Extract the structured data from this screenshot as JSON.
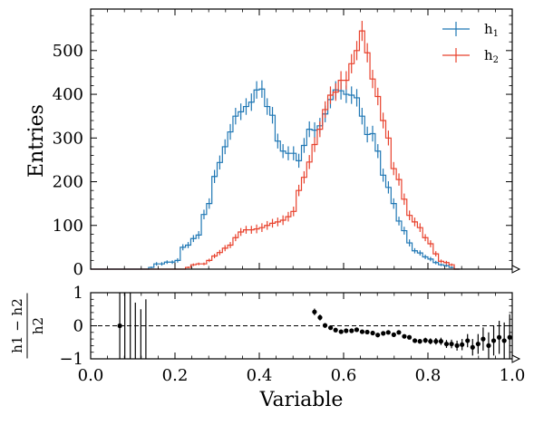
{
  "chart_data": [
    {
      "type": "histogram",
      "panel": "main",
      "xlim": [
        0.0,
        1.0
      ],
      "ylim": [
        0,
        595
      ],
      "ylabel": "Entries",
      "xlabel": "",
      "grid": false,
      "legend_position": "top-right",
      "bin_width": 0.0125,
      "bin_edges_start": 0.0,
      "yticks": [
        "0",
        "100",
        "200",
        "300",
        "400",
        "500"
      ],
      "ytick_values": [
        0,
        100,
        200,
        300,
        400,
        500
      ],
      "series": [
        {
          "name": "h1",
          "color": "#1f77b4",
          "values": [
            0,
            0,
            0,
            0,
            0,
            0,
            0,
            0,
            0,
            0,
            0,
            4,
            12,
            12,
            16,
            16,
            20,
            50,
            55,
            70,
            78,
            125,
            150,
            212,
            244,
            280,
            314,
            350,
            360,
            372,
            382,
            410,
            412,
            372,
            352,
            293,
            270,
            265,
            265,
            248,
            283,
            320,
            318,
            328,
            355,
            388,
            410,
            408,
            400,
            398,
            392,
            350,
            308,
            310,
            270,
            215,
            187,
            150,
            110,
            88,
            60,
            42,
            37,
            28,
            23,
            15,
            10,
            8,
            4,
            0
          ],
          "err": [
            0,
            0,
            0,
            0,
            0,
            0,
            0,
            0,
            0,
            0,
            0,
            2,
            4,
            4,
            4,
            4,
            5,
            7,
            7,
            8,
            9,
            11,
            12,
            15,
            16,
            17,
            18,
            19,
            19,
            19,
            20,
            20,
            20,
            19,
            19,
            17,
            16,
            16,
            16,
            16,
            17,
            18,
            18,
            18,
            19,
            20,
            20,
            20,
            20,
            20,
            20,
            19,
            18,
            18,
            16,
            15,
            14,
            12,
            10,
            9,
            8,
            6,
            6,
            5,
            5,
            4,
            3,
            3,
            2,
            0
          ]
        },
        {
          "name": "h2",
          "color": "#e8412c",
          "values": [
            0,
            0,
            0,
            0,
            0,
            0,
            0,
            0,
            0,
            0,
            0,
            0,
            0,
            0,
            0,
            0,
            0,
            0,
            4,
            10,
            12,
            12,
            20,
            30,
            38,
            48,
            55,
            72,
            85,
            90,
            90,
            92,
            95,
            100,
            105,
            108,
            112,
            120,
            132,
            180,
            210,
            245,
            285,
            320,
            365,
            398,
            405,
            432,
            432,
            470,
            500,
            545,
            495,
            435,
            395,
            340,
            300,
            230,
            205,
            160,
            123,
            108,
            95,
            72,
            58,
            35,
            18,
            15,
            10,
            0
          ],
          "err": [
            0,
            0,
            0,
            0,
            0,
            0,
            0,
            0,
            0,
            0,
            0,
            0,
            0,
            0,
            0,
            0,
            0,
            0,
            2,
            3,
            3,
            3,
            4,
            5,
            6,
            7,
            7,
            8,
            9,
            9,
            9,
            10,
            10,
            10,
            10,
            10,
            11,
            11,
            11,
            13,
            14,
            16,
            17,
            18,
            19,
            20,
            20,
            21,
            21,
            22,
            22,
            23,
            22,
            21,
            20,
            18,
            17,
            15,
            14,
            13,
            11,
            10,
            10,
            8,
            8,
            6,
            4,
            4,
            3,
            0
          ]
        }
      ]
    },
    {
      "type": "scatter",
      "panel": "ratio",
      "xlim": [
        0.0,
        1.0
      ],
      "ylim": [
        -1,
        1
      ],
      "xlabel": "Variable",
      "ylabel_numerator": "h1 − h2",
      "ylabel_denominator": "h2",
      "reference_line_y": 0,
      "xticks": [
        "0.0",
        "0.2",
        "0.4",
        "0.6",
        "0.8",
        "1.0"
      ],
      "xtick_values": [
        0.0,
        0.2,
        0.4,
        0.6,
        0.8,
        1.0
      ],
      "yticks": [
        "−1",
        "0",
        "1"
      ],
      "ytick_values": [
        -1,
        0,
        1
      ],
      "points": [
        {
          "x": 0.069,
          "y": 0.0,
          "err": 3.0
        },
        {
          "x": 0.531,
          "y": 0.42,
          "err": 0.1
        },
        {
          "x": 0.544,
          "y": 0.25,
          "err": 0.09
        },
        {
          "x": 0.556,
          "y": 0.01,
          "err": 0.07
        },
        {
          "x": 0.569,
          "y": -0.06,
          "err": 0.06
        },
        {
          "x": 0.581,
          "y": -0.13,
          "err": 0.05
        },
        {
          "x": 0.594,
          "y": -0.18,
          "err": 0.05
        },
        {
          "x": 0.606,
          "y": -0.15,
          "err": 0.05
        },
        {
          "x": 0.619,
          "y": -0.15,
          "err": 0.05
        },
        {
          "x": 0.631,
          "y": -0.12,
          "err": 0.05
        },
        {
          "x": 0.644,
          "y": -0.18,
          "err": 0.05
        },
        {
          "x": 0.656,
          "y": -0.19,
          "err": 0.05
        },
        {
          "x": 0.669,
          "y": -0.22,
          "err": 0.05
        },
        {
          "x": 0.681,
          "y": -0.28,
          "err": 0.05
        },
        {
          "x": 0.694,
          "y": -0.23,
          "err": 0.05
        },
        {
          "x": 0.706,
          "y": -0.2,
          "err": 0.05
        },
        {
          "x": 0.719,
          "y": -0.27,
          "err": 0.05
        },
        {
          "x": 0.731,
          "y": -0.2,
          "err": 0.06
        },
        {
          "x": 0.744,
          "y": -0.32,
          "err": 0.06
        },
        {
          "x": 0.756,
          "y": -0.35,
          "err": 0.06
        },
        {
          "x": 0.769,
          "y": -0.45,
          "err": 0.07
        },
        {
          "x": 0.781,
          "y": -0.47,
          "err": 0.07
        },
        {
          "x": 0.794,
          "y": -0.44,
          "err": 0.08
        },
        {
          "x": 0.806,
          "y": -0.47,
          "err": 0.09
        },
        {
          "x": 0.819,
          "y": -0.47,
          "err": 0.1
        },
        {
          "x": 0.831,
          "y": -0.47,
          "err": 0.11
        },
        {
          "x": 0.844,
          "y": -0.55,
          "err": 0.12
        },
        {
          "x": 0.856,
          "y": -0.55,
          "err": 0.13
        },
        {
          "x": 0.869,
          "y": -0.6,
          "err": 0.15
        },
        {
          "x": 0.881,
          "y": -0.57,
          "err": 0.17
        },
        {
          "x": 0.894,
          "y": -0.45,
          "err": 0.2
        },
        {
          "x": 0.906,
          "y": -0.65,
          "err": 0.25
        },
        {
          "x": 0.919,
          "y": -0.55,
          "err": 0.3
        },
        {
          "x": 0.931,
          "y": -0.4,
          "err": 0.35
        },
        {
          "x": 0.944,
          "y": -0.6,
          "err": 0.4
        },
        {
          "x": 0.956,
          "y": -0.45,
          "err": 0.45
        },
        {
          "x": 0.969,
          "y": -0.35,
          "err": 0.5
        },
        {
          "x": 0.981,
          "y": -0.45,
          "err": 0.55
        },
        {
          "x": 0.994,
          "y": -0.35,
          "err": 0.7
        }
      ],
      "offscale_uncertainties_x": [
        0.081,
        0.094,
        0.106,
        0.119,
        0.131
      ],
      "offscale_uncertainties_top": [
        1.0,
        1.0,
        0.7,
        0.5,
        0.8
      ]
    }
  ]
}
